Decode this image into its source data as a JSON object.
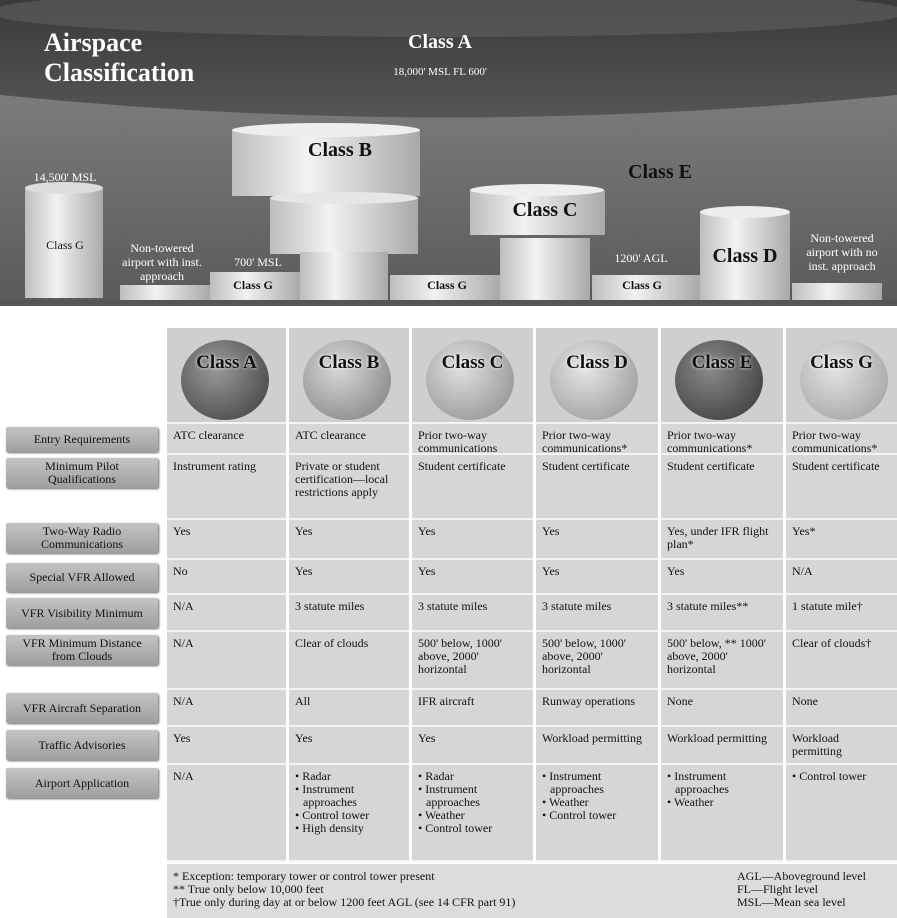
{
  "diagram": {
    "title": "Airspace Classification",
    "labels": [
      "Class A",
      "18,000' MSL  FL 600'",
      "Class B",
      "Class E",
      "Class C",
      "14,500' MSL",
      "Class G",
      "Non-towered airport with inst. approach",
      "700' MSL",
      "Class G",
      "Class G",
      "1200' AGL",
      "Class G",
      "Class D",
      "Non-towered airport with no inst. approach"
    ]
  },
  "table": {
    "columns": [
      "Class A",
      "Class B",
      "Class C",
      "Class D",
      "Class E",
      "Class G"
    ],
    "rows": [
      {
        "label": "Entry Requirements",
        "cells": [
          "ATC clearance",
          "ATC clearance",
          "Prior two-way communications",
          "Prior two-way communications*",
          "Prior two-way communications*",
          "Prior two-way communications*"
        ]
      },
      {
        "label": "Minimum Pilot Qualifications",
        "cells": [
          "Instrument rating",
          "Private or student certification—local restrictions apply",
          "Student certificate",
          "Student certificate",
          "Student certificate",
          "Student certificate"
        ]
      },
      {
        "label": "Two-Way Radio Communications",
        "cells": [
          "Yes",
          "Yes",
          "Yes",
          "Yes",
          "Yes, under IFR flight plan*",
          "Yes*"
        ]
      },
      {
        "label": "Special VFR Allowed",
        "cells": [
          "No",
          "Yes",
          "Yes",
          "Yes",
          "Yes",
          "N/A"
        ]
      },
      {
        "label": "VFR Visibility Minimum",
        "cells": [
          "N/A",
          "3 statute miles",
          "3 statute miles",
          "3 statute miles",
          "3 statute miles**",
          "1 statute mile†"
        ]
      },
      {
        "label": "VFR Minimum Distance from Clouds",
        "cells": [
          "N/A",
          "Clear of clouds",
          "500' below, 1000' above, 2000' horizontal",
          "500' below, 1000' above, 2000' horizontal",
          "500' below, ** 1000' above, 2000' horizontal",
          "Clear of clouds†"
        ]
      },
      {
        "label": "VFR Aircraft Separation",
        "cells": [
          "N/A",
          "All",
          "IFR aircraft",
          "Runway operations",
          "None",
          "None"
        ]
      },
      {
        "label": "Traffic Advisories",
        "cells": [
          "Yes",
          "Yes",
          "Yes",
          "Workload permitting",
          "Workload permitting",
          "Workload permitting"
        ]
      },
      {
        "label": "Airport Application",
        "cells": [
          "N/A",
          [
            "• Radar",
            "• Instrument approaches",
            "• Control tower",
            "• High density"
          ],
          [
            "• Radar",
            "• Instrument approaches",
            "• Weather",
            "• Control tower"
          ],
          [
            "• Instrument approaches",
            "• Weather",
            "• Control tower"
          ],
          [
            "• Instrument approaches",
            "• Weather"
          ],
          [
            "• Control tower"
          ]
        ]
      }
    ]
  },
  "footnotes": {
    "left": [
      "* Exception: temporary tower or control tower present",
      "** True only below 10,000 feet",
      "†True only during day at or below 1200 feet AGL (see 14 CFR part 91)"
    ],
    "right": [
      "AGL—Aboveground level",
      "FL—Flight level",
      "MSL—Mean sea level"
    ]
  }
}
